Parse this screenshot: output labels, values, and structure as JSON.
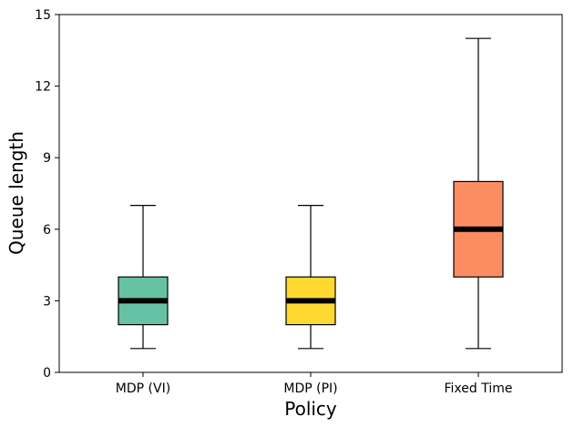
{
  "chart_data": {
    "type": "boxplot",
    "title": "",
    "xlabel": "Policy",
    "ylabel": "Queue length",
    "ylim": [
      0,
      15
    ],
    "yticks": [
      0,
      3,
      6,
      9,
      12,
      15
    ],
    "grid": false,
    "categories": [
      "MDP (VI)",
      "MDP (PI)",
      "Fixed Time"
    ],
    "boxes": [
      {
        "category": "MDP (VI)",
        "whisker_low": 1,
        "q1": 2,
        "median": 3,
        "q3": 4,
        "whisker_high": 7,
        "color": "#66c2a5"
      },
      {
        "category": "MDP (PI)",
        "whisker_low": 1,
        "q1": 2,
        "median": 3,
        "q3": 4,
        "whisker_high": 7,
        "color": "#ffd92f"
      },
      {
        "category": "Fixed Time",
        "whisker_low": 1,
        "q1": 4,
        "median": 6,
        "q3": 8,
        "whisker_high": 14,
        "color": "#fc8d62"
      }
    ]
  }
}
